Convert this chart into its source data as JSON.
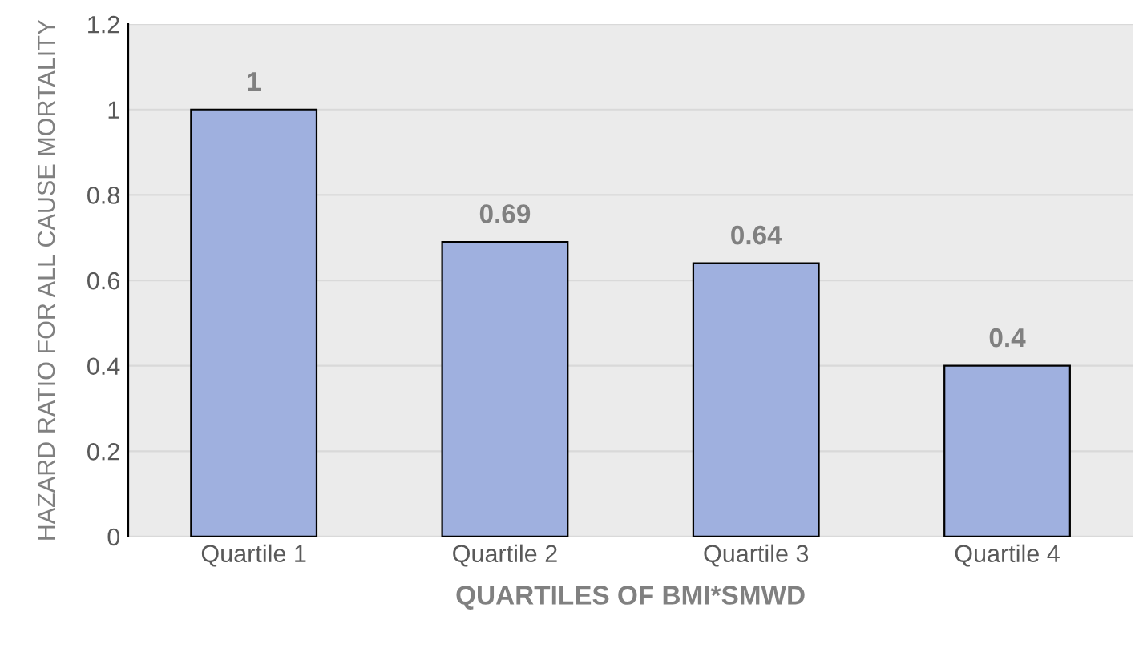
{
  "chart_data": {
    "type": "bar",
    "xlabel": "QUARTILES OF BMI*SMWD",
    "ylabel": "HAZARD RATIO FOR ALL CAUSE MORTALITY",
    "categories": [
      "Quartile 1",
      "Quartile 2",
      "Quartile 3",
      "Quartile 4"
    ],
    "values": [
      1,
      0.69,
      0.64,
      0.4
    ],
    "color": "#9fb0df",
    "ylim": [
      0,
      1.2
    ],
    "yticks": [
      0,
      0.2,
      0.4,
      0.6,
      0.8,
      1,
      1.2
    ],
    "grid": "y",
    "data_labels": true
  }
}
